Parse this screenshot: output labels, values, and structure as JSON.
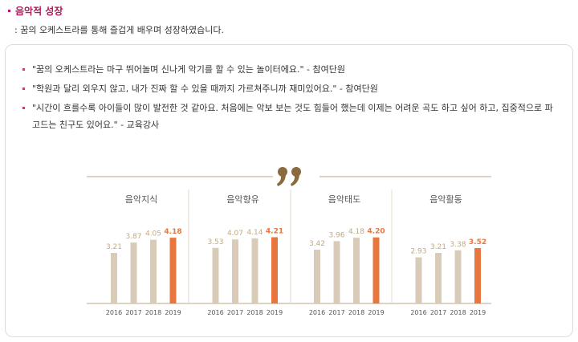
{
  "header": {
    "title": "음악적 성장",
    "subtitle": ": 꿈의 오케스트라를 통해 즐겁게 배우며 성장하였습니다."
  },
  "quotes": [
    "\"꿈의 오케스트라는 마구 뛰어놀며 신나게 악기를 할 수 있는 놀이터에요.\" - 참여단원",
    "\"학원과 달리 외우지 않고, 내가 진짜 할 수 있을 때까지 가르쳐주니까 재미있어요.\" - 참여단원",
    "\"시간이 흐를수록 아이들이 많이 발전한 것 같아요. 처음에는 악보 보는 것도 힘들어 했는데 이제는 어려운 곡도 하고 싶어 하고, 집중적으로 파고드는 친구도 있어요.\" - 교육강사"
  ],
  "chart_data": [
    {
      "type": "bar",
      "title": "음악지식",
      "categories": [
        "2016",
        "2017",
        "2018",
        "2019"
      ],
      "values": [
        3.21,
        3.87,
        4.05,
        4.18
      ],
      "value_labels": [
        "3.21",
        "3.87",
        "4.05",
        "4.18"
      ],
      "colors": [
        "#d8ccb8",
        "#d8ccb8",
        "#d8ccb8",
        "#e8773f"
      ],
      "ylim": [
        0,
        5
      ]
    },
    {
      "type": "bar",
      "title": "음악향유",
      "categories": [
        "2016",
        "2017",
        "2018",
        "2019"
      ],
      "values": [
        3.53,
        4.07,
        4.14,
        4.21
      ],
      "value_labels": [
        "3.53",
        "4.07",
        "4.14",
        "4.21"
      ],
      "colors": [
        "#d8ccb8",
        "#d8ccb8",
        "#d8ccb8",
        "#e8773f"
      ],
      "ylim": [
        0,
        5
      ]
    },
    {
      "type": "bar",
      "title": "음악태도",
      "categories": [
        "2016",
        "2017",
        "2018",
        "2019"
      ],
      "values": [
        3.42,
        3.96,
        4.18,
        4.2
      ],
      "value_labels": [
        "3.42",
        "3.96",
        "4.18",
        "4.20"
      ],
      "colors": [
        "#d8ccb8",
        "#d8ccb8",
        "#d8ccb8",
        "#e8773f"
      ],
      "ylim": [
        0,
        5
      ]
    },
    {
      "type": "bar",
      "title": "음악활동",
      "categories": [
        "2016",
        "2017",
        "2018",
        "2019"
      ],
      "values": [
        2.93,
        3.21,
        3.38,
        3.52
      ],
      "value_labels": [
        "2.93",
        "3.21",
        "3.38",
        "3.52"
      ],
      "colors": [
        "#d8ccb8",
        "#d8ccb8",
        "#d8ccb8",
        "#e8773f"
      ],
      "ylim": [
        0,
        5
      ]
    }
  ]
}
